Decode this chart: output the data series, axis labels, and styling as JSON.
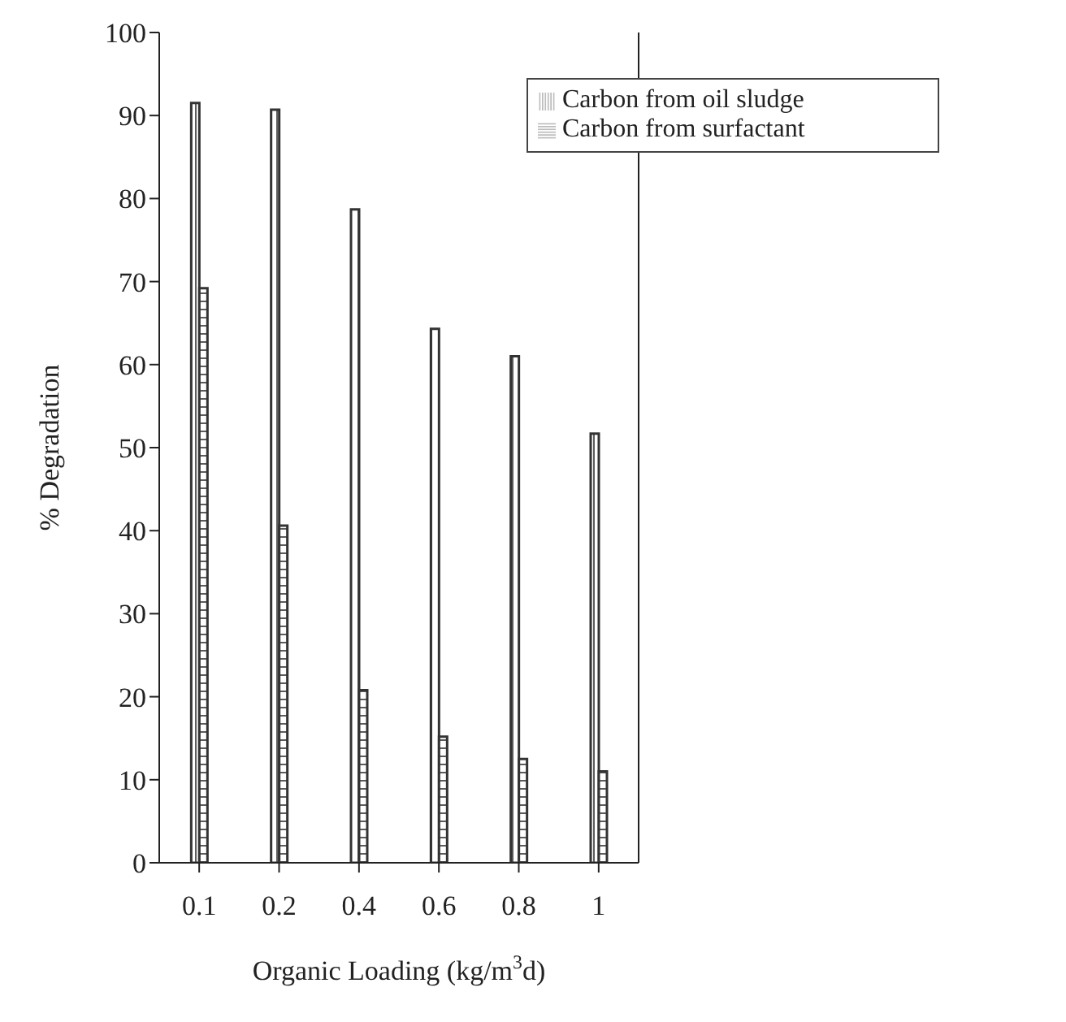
{
  "chart_data": {
    "type": "bar",
    "xlabel": "Organic Loading (kg/m$^{3}$d)",
    "ylabel": "% Degradation",
    "categories": [
      "0.1",
      "0.2",
      "0.4",
      "0.6",
      "0.8",
      "1"
    ],
    "series": [
      {
        "name": "Carbon from oil sludge",
        "color": "#333333",
        "values": [
          91.5,
          90.7,
          78.7,
          64.3,
          61.0,
          51.7
        ]
      },
      {
        "name": "Carbon from surfactant",
        "color": "#333333",
        "values": [
          69.2,
          40.6,
          20.8,
          15.2,
          12.5,
          11.0
        ]
      }
    ],
    "ylim": [
      0,
      100
    ],
    "yticks": [
      0,
      10,
      20,
      30,
      40,
      50,
      60,
      70,
      80,
      90,
      100
    ],
    "grid": false,
    "legend": "top right"
  }
}
